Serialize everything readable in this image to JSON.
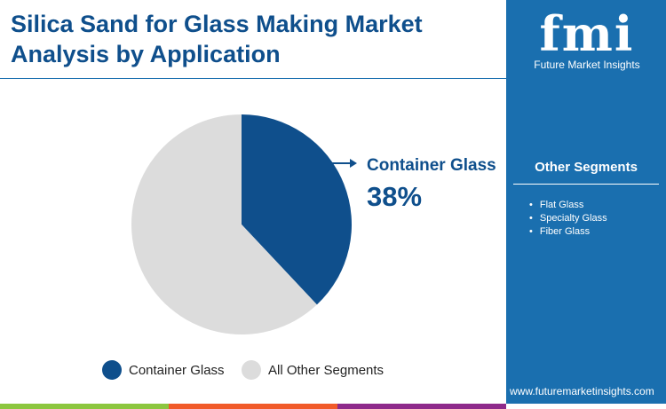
{
  "title": "Silica Sand for Glass Making Market Analysis by Application",
  "logo": {
    "text": "fmi",
    "subtitle": "Future Market Insights"
  },
  "sidebar": {
    "heading": "Other Segments",
    "items": [
      "Flat Glass",
      "Specialty Glass",
      "Fiber Glass"
    ],
    "url": "www.futuremarketinsights.com"
  },
  "colors": {
    "primary": "#0f4f8c",
    "other": "#dcdcdc",
    "sidebar": "#1a6faf",
    "bars": [
      "#8cc63f",
      "#f15a29",
      "#8e2a8b"
    ]
  },
  "chart_data": {
    "type": "pie",
    "slices": [
      {
        "name": "Container Glass",
        "value": 38
      },
      {
        "name": "All Other Segments",
        "value": 62
      }
    ],
    "callout": {
      "label": "Container Glass",
      "value": "38%"
    },
    "legend": "bottom"
  }
}
